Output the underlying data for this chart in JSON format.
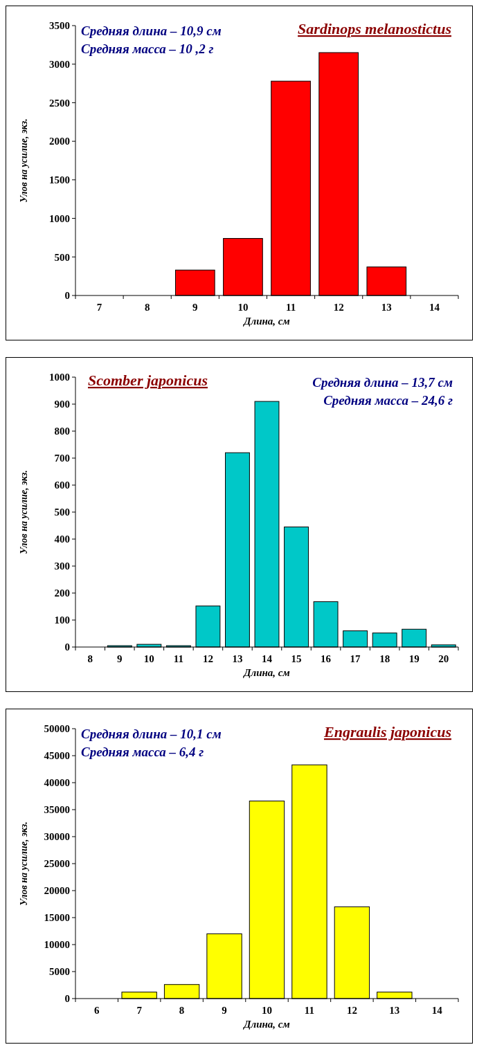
{
  "chart_data": [
    {
      "type": "bar",
      "title": "Sardinops melanostictus",
      "annotations": [
        "Средняя длина – 10,9 см",
        "Средняя масса – 10 ,2 г"
      ],
      "xlabel": "Длина, см",
      "ylabel": "Улов на усилие, экз.",
      "categories": [
        "7",
        "8",
        "9",
        "10",
        "11",
        "12",
        "13",
        "14"
      ],
      "values": [
        0,
        0,
        330,
        740,
        2780,
        3150,
        370,
        0
      ],
      "color": "#ff0000",
      "ylim": [
        0,
        3500
      ],
      "yticks": [
        0,
        500,
        1000,
        1500,
        2000,
        2500,
        3000,
        3500
      ]
    },
    {
      "type": "bar",
      "title": "Scomber japonicus",
      "annotations": [
        "Средняя длина – 13,7 см",
        "Средняя масса – 24,6 г"
      ],
      "xlabel": "Длина, см",
      "ylabel": "Улов на усилие, экз.",
      "categories": [
        "8",
        "9",
        "10",
        "11",
        "12",
        "13",
        "14",
        "15",
        "16",
        "17",
        "18",
        "19",
        "20"
      ],
      "values": [
        0,
        5,
        10,
        5,
        152,
        720,
        910,
        445,
        168,
        60,
        52,
        66,
        8
      ],
      "color": "#00c8c8",
      "ylim": [
        0,
        1000
      ],
      "yticks": [
        0,
        100,
        200,
        300,
        400,
        500,
        600,
        700,
        800,
        900,
        1000
      ]
    },
    {
      "type": "bar",
      "title": "Engraulis japonicus",
      "annotations": [
        "Средняя длина – 10,1 см",
        "Средняя масса – 6,4 г"
      ],
      "xlabel": "Длина, см",
      "ylabel": "Улов на усилие, экз.",
      "categories": [
        "6",
        "7",
        "8",
        "9",
        "10",
        "11",
        "12",
        "13",
        "14"
      ],
      "values": [
        0,
        1200,
        2600,
        12000,
        36600,
        43300,
        17000,
        1200,
        0
      ],
      "color": "#ffff00",
      "ylim": [
        0,
        50000
      ],
      "yticks": [
        0,
        5000,
        10000,
        15000,
        20000,
        25000,
        30000,
        35000,
        40000,
        45000,
        50000
      ]
    }
  ]
}
